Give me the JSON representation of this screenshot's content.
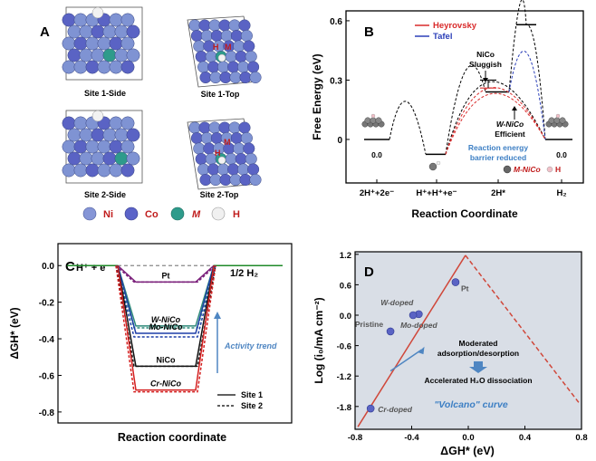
{
  "figure": {
    "panel_a": {
      "letter": "A",
      "site_labels": [
        "Site 1-Side",
        "Site 1-Top",
        "Site 2-Side",
        "Site 2-Top"
      ],
      "atom_labels": [
        "H",
        "M"
      ],
      "legend": [
        {
          "label": "Ni",
          "color": "#7f93d3"
        },
        {
          "label": "Co",
          "color": "#5a63c4"
        },
        {
          "label": "M",
          "color": "#2e9b8b"
        },
        {
          "label": "H",
          "color": "#f2f2f2"
        }
      ]
    },
    "panel_b": {
      "letter": "B",
      "legend": [
        {
          "label": "Heyrovsky",
          "color": "#d92b2b"
        },
        {
          "label": "Tafel",
          "color": "#2b3fb8"
        }
      ],
      "annotations": {
        "nico_top": "NiCo",
        "nico_bottom": "Sluggish",
        "wnico_top": "W-NiCo",
        "wnico_bottom": "Efficient",
        "reduced_1": "Reaction energy",
        "reduced_2": "barrier reduced",
        "zero_left": "0.0",
        "zero_right": "0.0",
        "legend_m": "M-NiCo",
        "legend_h": "H"
      }
    },
    "panel_c": {
      "letter": "C",
      "left_label": "H⁺ + e⁻",
      "right_label": "1/2 H₂",
      "series_labels": [
        "Pt",
        "W-NiCo",
        "Mo-NiCo",
        "NiCo",
        "Cr-NiCo"
      ],
      "activity_trend": "Activity trend",
      "site_legend": [
        "Site 1",
        "Site 2"
      ]
    },
    "panel_d": {
      "letter": "D",
      "point_labels": [
        "Pt",
        "W-doped",
        "Pristine",
        "Mo-doped",
        "Cr-doped"
      ],
      "moderated_1": "Moderated",
      "moderated_2": "adsorption/desorption",
      "accelerated": "Accelerated H₂O dissociation",
      "volcano": "\"Volcano\" curve"
    }
  },
  "chart_data": [
    {
      "type": "line",
      "panel": "B",
      "title": "",
      "xlabel": "Reaction Coordinate",
      "ylabel": "Free Energy (eV)",
      "categories": [
        "2H⁺+2e⁻",
        "H⁺+H⁺+e⁻",
        "2H*",
        "H₂"
      ],
      "yticks": [
        "0",
        "0.3",
        "0.6"
      ],
      "ylim": [
        -0.22,
        0.65
      ],
      "levels": [
        0.0,
        -0.075,
        0.24,
        0.0
      ],
      "heyrovsky_barrier_nico": 0.32,
      "tafel_barrier_nico": 0.58
    },
    {
      "type": "line",
      "panel": "C",
      "title": "",
      "xlabel": "Reaction coordinate",
      "ylabel": "ΔGH* (eV)",
      "yticks": [
        "0.0",
        "-0.2",
        "-0.4",
        "-0.6",
        "-0.8"
      ],
      "ylim": [
        -0.86,
        0.12
      ],
      "series": [
        {
          "name": "Pt",
          "color": "#7a1f7a",
          "site1": -0.09,
          "site2": -0.09
        },
        {
          "name": "W-NiCo",
          "color": "#2e8a7a",
          "site1": -0.33,
          "site2": -0.34
        },
        {
          "name": "Mo-NiCo",
          "color": "#1f3fa8",
          "site1": -0.37,
          "site2": -0.39
        },
        {
          "name": "NiCo",
          "color": "#111111",
          "site1": -0.55,
          "site2": -0.55
        },
        {
          "name": "Cr-NiCo",
          "color": "#d42020",
          "site1": -0.68,
          "site2": -0.69
        }
      ]
    },
    {
      "type": "scatter",
      "panel": "D",
      "title": "",
      "xlabel": "ΔGH* (eV)",
      "ylabel": "Log (i₀/mA cm⁻²)",
      "xticks": [
        "-0.8",
        "-0.4",
        "0.0",
        "0.4",
        "0.8"
      ],
      "yticks": [
        "1.2",
        "0.6",
        "0.0",
        "-0.6",
        "-1.2",
        "-1.8"
      ],
      "xlim": [
        -0.8,
        0.8
      ],
      "ylim": [
        -2.25,
        1.25
      ],
      "points": [
        {
          "name": "Pt",
          "x": -0.09,
          "y": 0.65
        },
        {
          "name": "W-doped",
          "x": -0.35,
          "y": 0.02
        },
        {
          "name": "Pristine",
          "x": -0.55,
          "y": -0.32
        },
        {
          "name": "Mo-doped",
          "x": -0.39,
          "y": 0.0
        },
        {
          "name": "Cr-doped",
          "x": -0.69,
          "y": -1.84
        }
      ],
      "volcano_peak": {
        "x": -0.02,
        "y": 1.18
      }
    }
  ]
}
